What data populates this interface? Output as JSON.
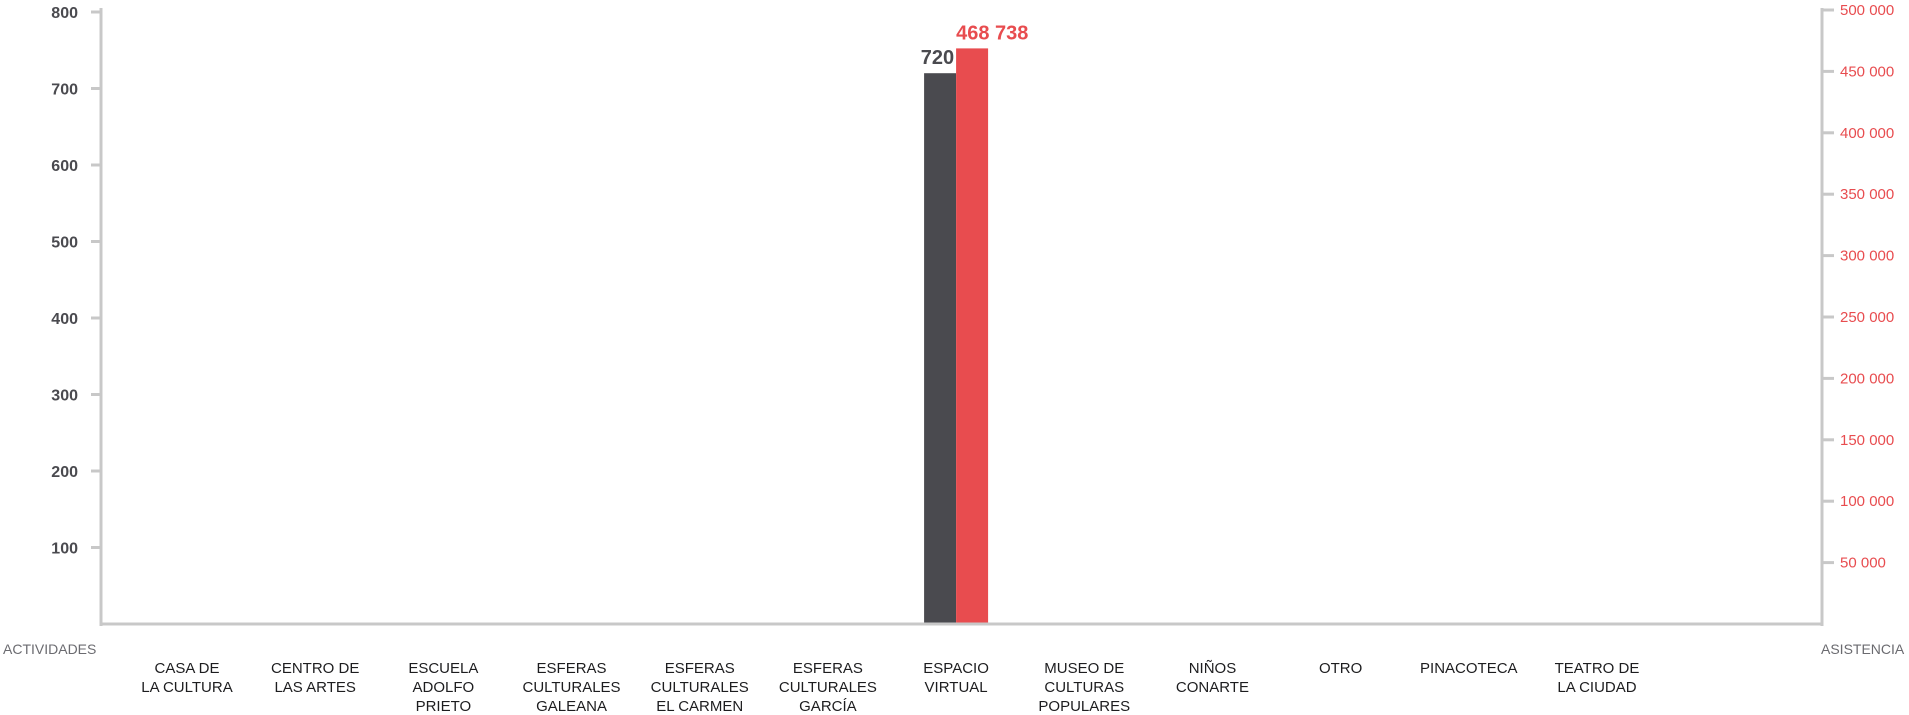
{
  "chart_data": {
    "type": "bar",
    "categories": [
      [
        "CASA DE",
        "LA CULTURA"
      ],
      [
        "CENTRO DE",
        "LAS ARTES"
      ],
      [
        "ESCUELA",
        "ADOLFO",
        "PRIETO"
      ],
      [
        "ESFERAS",
        "CULTURALES",
        "GALEANA"
      ],
      [
        "ESFERAS",
        "CULTURALES",
        "EL CARMEN"
      ],
      [
        "ESFERAS",
        "CULTURALES",
        "GARCÍA"
      ],
      [
        "ESPACIO",
        "VIRTUAL"
      ],
      [
        "MUSEO DE",
        "CULTURAS",
        "POPULARES"
      ],
      [
        "NIÑOS",
        "CONARTE"
      ],
      [
        "OTRO"
      ],
      [
        "PINACOTECA"
      ],
      [
        "TEATRO DE",
        "LA CIUDAD"
      ]
    ],
    "series": [
      {
        "axis": "left",
        "color": "#4a4a4f",
        "values": [
          0,
          0,
          0,
          0,
          0,
          0,
          720,
          0,
          0,
          0,
          0,
          0
        ],
        "labels": [
          "",
          "",
          "",
          "",
          "",
          "",
          "720",
          "",
          "",
          "",
          "",
          ""
        ]
      },
      {
        "axis": "right",
        "color": "#e84c4f",
        "values": [
          0,
          0,
          0,
          0,
          0,
          0,
          468738,
          0,
          0,
          0,
          0,
          0
        ],
        "labels": [
          "",
          "",
          "",
          "",
          "",
          "",
          "468 738",
          "",
          "",
          "",
          "",
          ""
        ]
      }
    ],
    "y_left": {
      "caption": "ACTIVIDADES",
      "ylim": [
        0,
        800
      ],
      "ticks": [
        100,
        200,
        300,
        400,
        500,
        600,
        700,
        800
      ],
      "tick_labels": [
        "100",
        "200",
        "300",
        "400",
        "500",
        "600",
        "700",
        "800"
      ],
      "color": "#4a4a4f"
    },
    "y_right": {
      "caption": "ASISTENCIA",
      "ylim": [
        0,
        500000
      ],
      "ticks": [
        50000,
        100000,
        150000,
        200000,
        250000,
        300000,
        350000,
        400000,
        450000,
        500000
      ],
      "tick_labels": [
        "50 000",
        "100 000",
        "150 000",
        "200 000",
        "250 000",
        "300 000",
        "350 000",
        "400 000",
        "450 000",
        "500 000"
      ],
      "color": "#e84c4f"
    },
    "axis_color": "#c8c8c8",
    "grid": false,
    "legend": "none"
  }
}
